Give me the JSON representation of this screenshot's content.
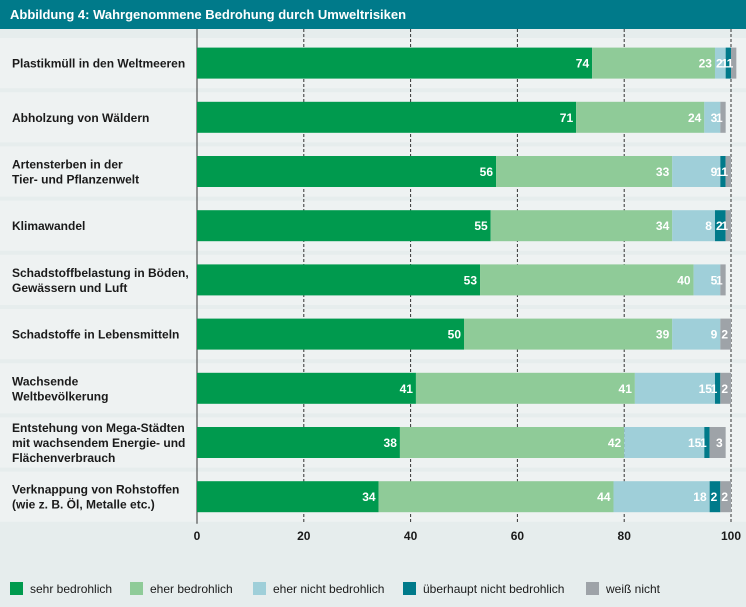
{
  "header": {
    "title_prefix": "Abbildung 4:",
    "title": "Wahrgenommene Bedrohung durch Umweltrisiken"
  },
  "chart_data": {
    "type": "bar",
    "orientation": "horizontal",
    "stacked": true,
    "categories": [
      [
        "Plastikmüll in den Weltmeeren"
      ],
      [
        "Abholzung von Wäldern"
      ],
      [
        "Artensterben in der",
        "Tier- und Pflanzenwelt"
      ],
      [
        "Klimawandel"
      ],
      [
        "Schadstoffbelastung in Böden,",
        "Gewässern und Luft"
      ],
      [
        "Schadstoffe in Lebensmitteln"
      ],
      [
        "Wachsende",
        "Weltbevölkerung"
      ],
      [
        "Entstehung von Mega-Städten",
        "mit wachsendem Energie- und",
        "Flächenverbrauch"
      ],
      [
        "Verknappung von Rohstoffen",
        "(wie z. B. Öl, Metalle etc.)"
      ]
    ],
    "series": [
      {
        "name": "sehr bedrohlich",
        "color": "#009a4e",
        "values": [
          74,
          71,
          56,
          55,
          53,
          50,
          41,
          38,
          34
        ]
      },
      {
        "name": "eher bedrohlich",
        "color": "#8fcb98",
        "values": [
          23,
          24,
          33,
          34,
          40,
          39,
          41,
          42,
          44
        ]
      },
      {
        "name": "eher nicht bedrohlich",
        "color": "#9fcfd9",
        "values": [
          2,
          3,
          9,
          8,
          5,
          9,
          15,
          15,
          18
        ]
      },
      {
        "name": "überhaupt nicht bedrohlich",
        "color": "#007a8a",
        "values": [
          1,
          0,
          1,
          2,
          0,
          0,
          1,
          1,
          2
        ]
      },
      {
        "name": "weiß nicht",
        "color": "#9ea3a8",
        "values": [
          1,
          1,
          1,
          1,
          1,
          2,
          2,
          3,
          2
        ]
      }
    ],
    "xlim": [
      0,
      100
    ],
    "xticks": [
      0,
      20,
      40,
      60,
      80,
      100
    ],
    "grid": true,
    "legend_position": "bottom"
  }
}
